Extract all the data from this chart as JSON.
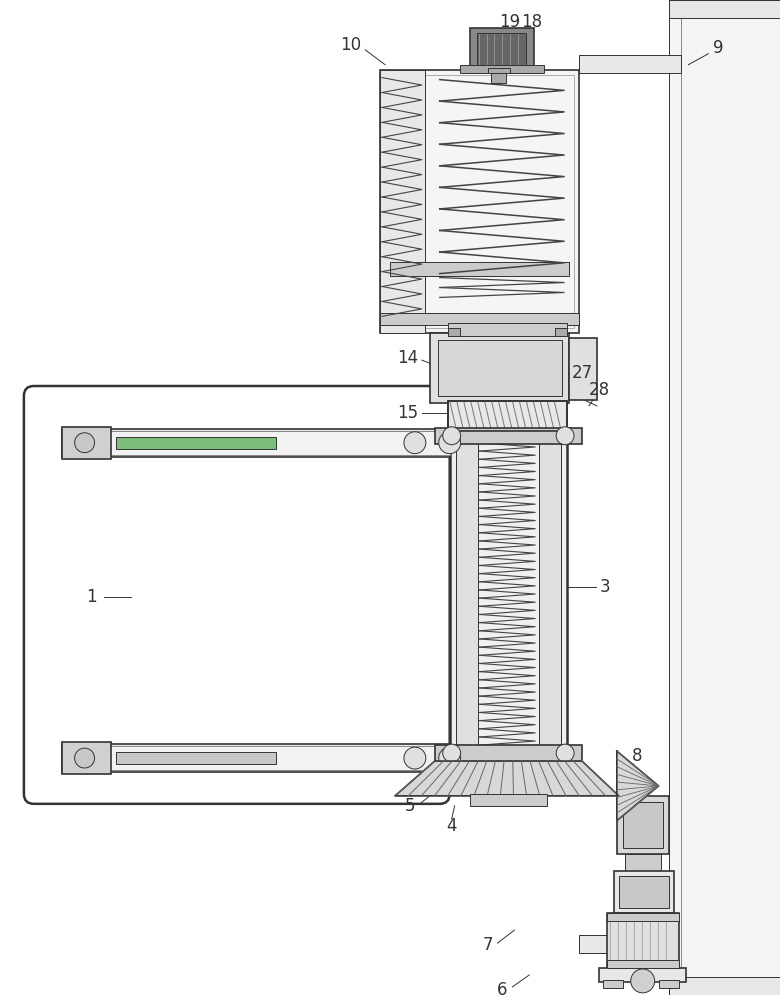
{
  "bg_color": "#ffffff",
  "lc": "#333333",
  "lc2": "#555555",
  "fc_light": "#f0f0f0",
  "fc_mid": "#e0e0e0",
  "fc_gray": "#cccccc",
  "fc_dark": "#aaaaaa",
  "fc_motor": "#888888",
  "fc_motor2": "#666666",
  "green": "#7bbf7b",
  "figsize": [
    7.82,
    10.0
  ],
  "dpi": 100
}
